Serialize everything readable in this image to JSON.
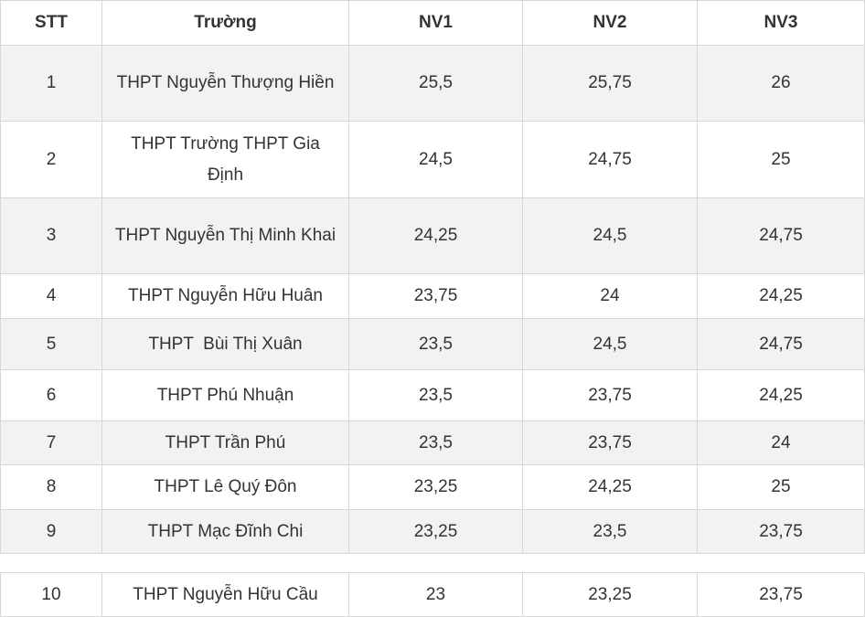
{
  "table": {
    "headers": [
      "STT",
      "Trường",
      "NV1",
      "NV2",
      "NV3"
    ],
    "rows": [
      {
        "stt": "1",
        "school": "THPT Nguyễn Thượng Hiền",
        "nv1": "25,5",
        "nv2": "25,75",
        "nv3": "26"
      },
      {
        "stt": "2",
        "school": "THPT Trường THPT Gia Định",
        "nv1": "24,5",
        "nv2": "24,75",
        "nv3": "25"
      },
      {
        "stt": "3",
        "school": "THPT Nguyễn Thị Minh Khai",
        "nv1": "24,25",
        "nv2": "24,5",
        "nv3": "24,75"
      },
      {
        "stt": "4",
        "school": "THPT Nguyễn Hữu Huân",
        "nv1": "23,75",
        "nv2": "24",
        "nv3": "24,25"
      },
      {
        "stt": "5",
        "school": "THPT  Bùi Thị Xuân",
        "nv1": "23,5",
        "nv2": "24,5",
        "nv3": "24,75"
      },
      {
        "stt": "6",
        "school": "THPT Phú Nhuận",
        "nv1": "23,5",
        "nv2": "23,75",
        "nv3": "24,25"
      },
      {
        "stt": "7",
        "school": "THPT Trần Phú",
        "nv1": "23,5",
        "nv2": "23,75",
        "nv3": "24"
      },
      {
        "stt": "8",
        "school": "THPT Lê Quý Đôn",
        "nv1": "23,25",
        "nv2": "24,25",
        "nv3": "25"
      },
      {
        "stt": "9",
        "school": "THPT Mạc Đĩnh Chi",
        "nv1": "23,25",
        "nv2": "23,5",
        "nv3": "23,75"
      }
    ],
    "rows2": [
      {
        "stt": "10",
        "school": "THPT Nguyễn Hữu Cầu",
        "nv1": "23",
        "nv2": "23,25",
        "nv3": "23,75"
      }
    ]
  }
}
